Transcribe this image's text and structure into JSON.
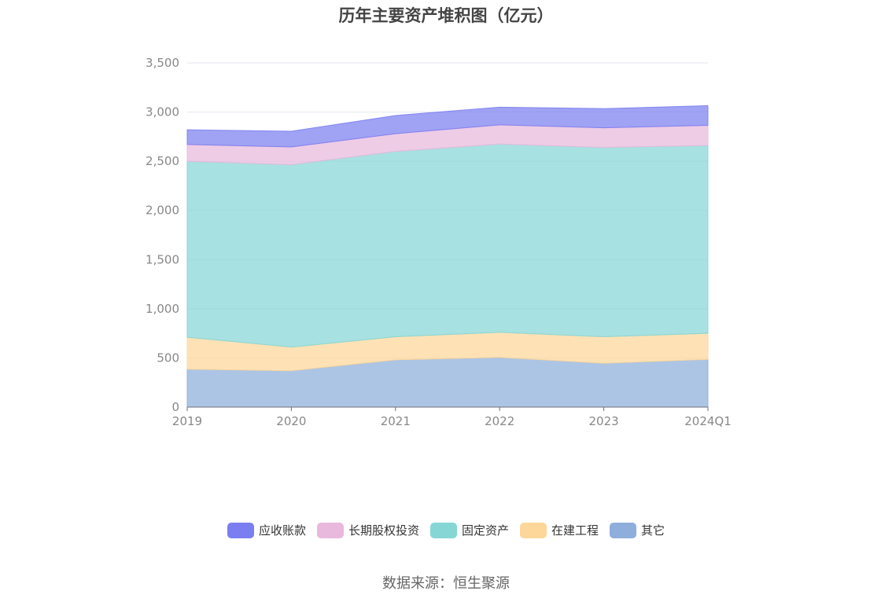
{
  "chart_data": {
    "type": "area",
    "stacked": true,
    "title": "历年主要资产堆积图（亿元）",
    "categories": [
      "2019",
      "2020",
      "2021",
      "2022",
      "2023",
      "2024Q1"
    ],
    "ylim": [
      0,
      3500
    ],
    "yticks": [
      "0",
      "500",
      "1,000",
      "1,500",
      "2,000",
      "2,500",
      "3,000",
      "3,500"
    ],
    "grid": true,
    "legend_position": "bottom",
    "series": [
      {
        "name": "其它",
        "color": "#8eaedb",
        "values": [
          385,
          370,
          480,
          505,
          445,
          485
        ]
      },
      {
        "name": "在建工程",
        "color": "#fdd79a",
        "values": [
          325,
          240,
          235,
          255,
          270,
          265
        ]
      },
      {
        "name": "固定资产",
        "color": "#86d6d6",
        "values": [
          1790,
          1855,
          1885,
          1915,
          1925,
          1910
        ]
      },
      {
        "name": "长期股权投资",
        "color": "#e8b9dc",
        "values": [
          170,
          180,
          180,
          195,
          200,
          205
        ]
      },
      {
        "name": "应收账款",
        "color": "#7b7ef0",
        "values": [
          150,
          160,
          185,
          180,
          195,
          200
        ]
      }
    ]
  },
  "legend_order": [
    "应收账款",
    "长期股权投资",
    "固定资产",
    "在建工程",
    "其它"
  ],
  "source": "数据来源：恒生聚源"
}
